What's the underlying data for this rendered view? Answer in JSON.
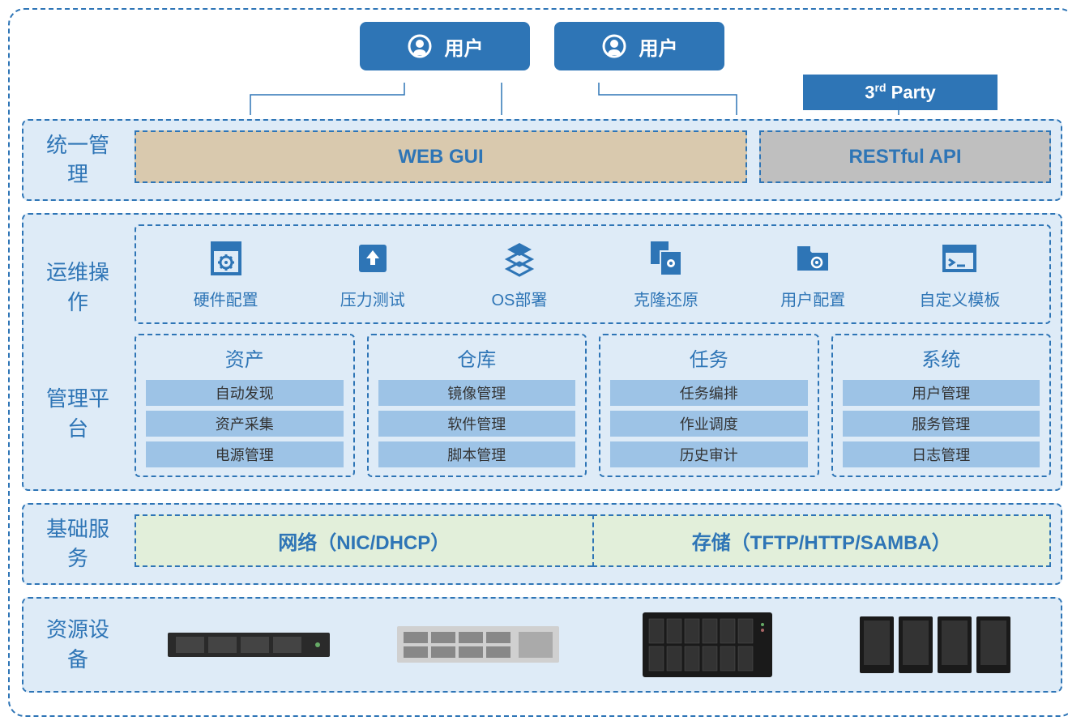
{
  "colors": {
    "primary": "#2e75b6",
    "layer_bg": "#deebf7",
    "webgui_bg": "#d9c9ae",
    "restful_bg": "#bfbfbf",
    "mgmt_item_bg": "#9dc3e6",
    "base_bg": "#e2efda"
  },
  "top": {
    "user1": "用户",
    "user2": "用户",
    "third_party_prefix": "3",
    "third_party_sup": "rd",
    "third_party_suffix": " Party"
  },
  "layers": {
    "unified": {
      "label": "统一管理",
      "webgui": "WEB GUI",
      "restful": "RESTful API"
    },
    "ops": {
      "label_line1": "运维操作",
      "items": [
        {
          "label": "硬件配置",
          "icon": "gear-doc"
        },
        {
          "label": "压力测试",
          "icon": "upload"
        },
        {
          "label": "OS部署",
          "icon": "stack"
        },
        {
          "label": "克隆还原",
          "icon": "copy-gear"
        },
        {
          "label": "用户配置",
          "icon": "folder-gear"
        },
        {
          "label": "自定义模板",
          "icon": "terminal"
        }
      ]
    },
    "mgmt": {
      "label": "管理平台",
      "groups": [
        {
          "title": "资产",
          "items": [
            "自动发现",
            "资产采集",
            "电源管理"
          ]
        },
        {
          "title": "仓库",
          "items": [
            "镜像管理",
            "软件管理",
            "脚本管理"
          ]
        },
        {
          "title": "任务",
          "items": [
            "任务编排",
            "作业调度",
            "历史审计"
          ]
        },
        {
          "title": "系统",
          "items": [
            "用户管理",
            "服务管理",
            "日志管理"
          ]
        }
      ]
    },
    "base": {
      "label": "基础服务",
      "network": "网络（NIC/DHCP）",
      "storage": "存储（TFTP/HTTP/SAMBA）"
    },
    "resource": {
      "label": "资源设备"
    }
  }
}
